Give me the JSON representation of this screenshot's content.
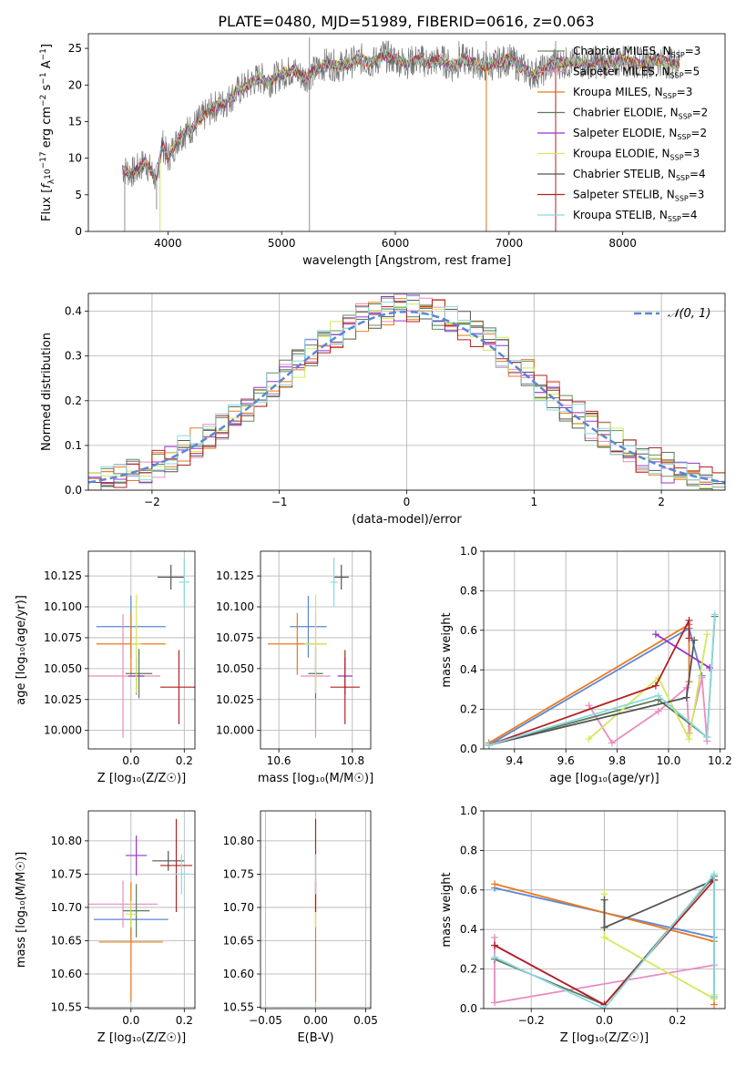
{
  "figure_title": "PLATE=0480, MJD=51989, FIBERID=0616, z=0.063",
  "colors": [
    "#6b8e5a",
    "#e88cc0",
    "#e87a1c",
    "#5a7a5a",
    "#9932cc",
    "#d4e85a",
    "#555555",
    "#b22222",
    "#8cd8e0"
  ],
  "model_colors": {
    "MILES_Chabrier": "#5b86d6",
    "MILES_Salpeter": "#e88cc0",
    "MILES_Kroupa": "#e87a1c",
    "ELODIE_Chabrier": "#5a7a5a",
    "ELODIE_Salpeter": "#9932cc",
    "ELODIE_Kroupa": "#d4e85a",
    "STELIB_Chabrier": "#555555",
    "STELIB_Salpeter": "#b22222",
    "STELIB_Kroupa": "#8cd8e0"
  },
  "chart_data": [
    {
      "id": "spectrum",
      "type": "line",
      "xlabel": "wavelength [Angstrom, rest frame]",
      "ylabel_parts": [
        "Flux [",
        "f",
        "λ",
        "10",
        "−17",
        " erg cm",
        "−2",
        " s",
        "−1",
        " A",
        "−1",
        "]"
      ],
      "xlim": [
        3300,
        8900
      ],
      "ylim": [
        0,
        27
      ],
      "xticks": [
        4000,
        5000,
        6000,
        7000,
        8000
      ],
      "yticks": [
        0,
        5,
        10,
        15,
        20,
        25
      ],
      "grid": false,
      "legend_position": "right",
      "series": [
        {
          "name": "Chabrier MILES, N",
          "sub": "SSP",
          "suffix": "=3",
          "color": "#6b8e5a"
        },
        {
          "name": "Salpeter MILES, N",
          "sub": "SSP",
          "suffix": "=5",
          "color": "#e88cc0"
        },
        {
          "name": "Kroupa MILES, N",
          "sub": "SSP",
          "suffix": "=3",
          "color": "#e87a1c"
        },
        {
          "name": "Chabrier ELODIE, N",
          "sub": "SSP",
          "suffix": "=2",
          "color": "#5a7a5a"
        },
        {
          "name": "Salpeter ELODIE, N",
          "sub": "SSP",
          "suffix": "=2",
          "color": "#9932cc"
        },
        {
          "name": "Kroupa ELODIE, N",
          "sub": "SSP",
          "suffix": "=3",
          "color": "#d4e85a"
        },
        {
          "name": "Chabrier STELIB, N",
          "sub": "SSP",
          "suffix": "=4",
          "color": "#555555"
        },
        {
          "name": "Salpeter STELIB, N",
          "sub": "SSP",
          "suffix": "=3",
          "color": "#b22222"
        },
        {
          "name": "Kroupa STELIB, N",
          "sub": "SSP",
          "suffix": "=4",
          "color": "#8cd8e0"
        }
      ],
      "continuum": [
        [
          3600,
          8.5
        ],
        [
          3700,
          8
        ],
        [
          3800,
          9.5
        ],
        [
          3900,
          7
        ],
        [
          3950,
          12
        ],
        [
          4000,
          10
        ],
        [
          4100,
          13
        ],
        [
          4200,
          14
        ],
        [
          4300,
          15.5
        ],
        [
          4400,
          17
        ],
        [
          4500,
          17.5
        ],
        [
          4600,
          19
        ],
        [
          4700,
          20
        ],
        [
          4800,
          21
        ],
        [
          4900,
          20.5
        ],
        [
          5000,
          21.5
        ],
        [
          5100,
          22
        ],
        [
          5200,
          21
        ],
        [
          5300,
          22
        ],
        [
          5400,
          23
        ],
        [
          5500,
          22.5
        ],
        [
          5600,
          23
        ],
        [
          5700,
          23.5
        ],
        [
          5800,
          23
        ],
        [
          5900,
          24
        ],
        [
          6000,
          23.5
        ],
        [
          6100,
          23
        ],
        [
          6200,
          23.5
        ],
        [
          6300,
          23
        ],
        [
          6400,
          23.5
        ],
        [
          6500,
          22.5
        ],
        [
          6600,
          23.5
        ],
        [
          6700,
          23
        ],
        [
          6800,
          22.5
        ],
        [
          6900,
          23
        ],
        [
          7000,
          23.5
        ],
        [
          7100,
          22.5
        ],
        [
          7200,
          21.5
        ],
        [
          7300,
          22
        ],
        [
          7400,
          23
        ],
        [
          7500,
          23
        ],
        [
          7600,
          23
        ],
        [
          7700,
          23
        ],
        [
          7800,
          23
        ],
        [
          7900,
          23
        ],
        [
          8000,
          23.5
        ],
        [
          8100,
          23
        ],
        [
          8200,
          23
        ],
        [
          8300,
          23.5
        ],
        [
          8400,
          23
        ],
        [
          8500,
          23
        ]
      ],
      "spikes": [
        [
          3620,
          0
        ],
        [
          3900,
          3
        ],
        [
          5245,
          0
        ],
        [
          5245,
          26.5
        ],
        [
          5890,
          26
        ],
        [
          6560,
          26
        ],
        [
          6800,
          0
        ],
        [
          6800,
          26
        ],
        [
          7410,
          0
        ],
        [
          7410,
          26
        ]
      ]
    },
    {
      "id": "residuals",
      "type": "histogram",
      "xlabel": "(data-model)/error",
      "ylabel": "Normed distribution",
      "xlim": [
        -2.5,
        2.5
      ],
      "ylim": [
        0,
        0.44
      ],
      "xticks": [
        -2,
        -1,
        0,
        1,
        2
      ],
      "yticks": [
        0.0,
        0.1,
        0.2,
        0.3,
        0.4
      ],
      "ytick_labels": [
        "0.0",
        "0.1",
        "0.2",
        "0.3",
        "0.4"
      ],
      "xtick_labels": [
        "−2",
        "−1",
        "0",
        "1",
        "2"
      ],
      "grid": true,
      "legend_position": "top-right",
      "legend_label": "𝒩(0, 1)",
      "gaussian_mean": 0,
      "gaussian_sigma": 1,
      "bin_width": 0.1
    },
    {
      "id": "age_vs_Z",
      "type": "scatter",
      "xlabel": "Z [log₁₀(Z/Z☉)]",
      "ylabel": "age  [log₁₀(age/yr)]",
      "xlim": [
        -0.16,
        0.24
      ],
      "ylim": [
        9.985,
        10.145
      ],
      "xticks": [
        0.0,
        0.2
      ],
      "xtick_labels": [
        "0.0",
        "0.2"
      ],
      "yticks": [
        10.0,
        10.025,
        10.05,
        10.075,
        10.1,
        10.125
      ],
      "ytick_labels": [
        "10.000",
        "10.025",
        "10.050",
        "10.075",
        "10.100",
        "10.125"
      ],
      "grid": true,
      "points": [
        {
          "x": 0.0,
          "y": 10.084,
          "xerr": 0.13,
          "yerr": 0.025,
          "color": "#5b86d6"
        },
        {
          "x": -0.03,
          "y": 10.044,
          "xerr": 0.14,
          "yerr": 0.05,
          "color": "#e88cc0"
        },
        {
          "x": 0.0,
          "y": 10.07,
          "xerr": 0.13,
          "yerr": 0.025,
          "color": "#e87a1c"
        },
        {
          "x": 0.03,
          "y": 10.046,
          "xerr": 0.05,
          "yerr": 0.02,
          "color": "#5a7a5a"
        },
        {
          "x": 0.02,
          "y": 10.044,
          "xerr": 0.03,
          "yerr": 0.015,
          "color": "#9932cc"
        },
        {
          "x": 0.02,
          "y": 10.07,
          "xerr": 0.02,
          "yerr": 0.04,
          "color": "#d4e85a"
        },
        {
          "x": 0.15,
          "y": 10.124,
          "xerr": 0.05,
          "yerr": 0.01,
          "color": "#555555"
        },
        {
          "x": 0.18,
          "y": 10.035,
          "xerr": 0.07,
          "yerr": 0.03,
          "color": "#b22222"
        },
        {
          "x": 0.2,
          "y": 10.12,
          "xerr": 0.02,
          "yerr": 0.02,
          "color": "#8cd8e0"
        }
      ]
    },
    {
      "id": "age_vs_mass",
      "type": "scatter",
      "xlabel": "mass [log₁₀(M/M☉)]",
      "ylabel": "",
      "xlim": [
        10.55,
        10.85
      ],
      "ylim": [
        9.985,
        10.145
      ],
      "xticks": [
        10.6,
        10.8
      ],
      "xtick_labels": [
        "10.6",
        "10.8"
      ],
      "yticks": [
        10.0,
        10.025,
        10.05,
        10.075,
        10.1,
        10.125
      ],
      "ytick_labels": [
        "10.000",
        "10.025",
        "10.050",
        "10.075",
        "10.100",
        "10.125"
      ],
      "grid": true,
      "points": [
        {
          "x": 10.68,
          "y": 10.084,
          "xerr": 0.05,
          "yerr": 0.025,
          "color": "#5b86d6"
        },
        {
          "x": 10.7,
          "y": 10.044,
          "xerr": 0.04,
          "yerr": 0.05,
          "color": "#e88cc0"
        },
        {
          "x": 10.65,
          "y": 10.07,
          "xerr": 0.08,
          "yerr": 0.025,
          "color": "#e87a1c"
        },
        {
          "x": 10.7,
          "y": 10.046,
          "xerr": 0.02,
          "yerr": 0.02,
          "color": "#5a7a5a"
        },
        {
          "x": 10.78,
          "y": 10.044,
          "xerr": 0.02,
          "yerr": 0.015,
          "color": "#9932cc"
        },
        {
          "x": 10.7,
          "y": 10.07,
          "xerr": 0.03,
          "yerr": 0.04,
          "color": "#d4e85a"
        },
        {
          "x": 10.77,
          "y": 10.124,
          "xerr": 0.02,
          "yerr": 0.01,
          "color": "#555555"
        },
        {
          "x": 10.78,
          "y": 10.035,
          "xerr": 0.04,
          "yerr": 0.03,
          "color": "#b22222"
        },
        {
          "x": 10.75,
          "y": 10.12,
          "xerr": 0.01,
          "yerr": 0.02,
          "color": "#8cd8e0"
        }
      ]
    },
    {
      "id": "weight_vs_age",
      "type": "line",
      "xlabel": "age  [log₁₀(age/yr)]",
      "ylabel": "mass weight",
      "xlim": [
        9.28,
        10.22
      ],
      "ylim": [
        0,
        1
      ],
      "xticks": [
        9.4,
        9.6,
        9.8,
        10.0,
        10.2
      ],
      "xtick_labels": [
        "9.4",
        "9.6",
        "9.8",
        "10.0",
        "10.2"
      ],
      "yticks": [
        0,
        0.2,
        0.4,
        0.6,
        0.8,
        1.0
      ],
      "ytick_labels": [
        "0.0",
        "0.2",
        "0.4",
        "0.6",
        "0.8",
        "1.0"
      ],
      "grid": true,
      "series": [
        {
          "color": "#5b86d6",
          "x": [
            9.3,
            10.08,
            10.13
          ],
          "y": [
            0.02,
            0.61,
            0.37
          ]
        },
        {
          "color": "#e87a1c",
          "x": [
            9.3,
            10.08,
            10.08
          ],
          "y": [
            0.03,
            0.63,
            0.34
          ]
        },
        {
          "color": "#e88cc0",
          "x": [
            9.69,
            9.78,
            9.96,
            10.07,
            10.08,
            10.13,
            10.15
          ],
          "y": [
            0.22,
            0.03,
            0.19,
            0.31,
            0.08,
            0.36,
            0.04
          ]
        },
        {
          "color": "#5a7a5a",
          "x": [
            9.3,
            9.96,
            10.15,
            10.18
          ],
          "y": [
            0.02,
            0.25,
            0.06,
            0.67
          ]
        },
        {
          "color": "#9932cc",
          "x": [
            9.95,
            10.16
          ],
          "y": [
            0.58,
            0.41
          ]
        },
        {
          "color": "#d4e85a",
          "x": [
            9.69,
            9.96,
            10.08,
            10.15
          ],
          "y": [
            0.05,
            0.36,
            0.05,
            0.58
          ]
        },
        {
          "color": "#555555",
          "x": [
            9.3,
            10.07,
            10.1
          ],
          "y": [
            0.02,
            0.26,
            0.55
          ]
        },
        {
          "color": "#b22222",
          "x": [
            9.3,
            9.95,
            10.08,
            10.08
          ],
          "y": [
            0.02,
            0.32,
            0.65,
            0.56
          ]
        },
        {
          "color": "#8cd8e0",
          "x": [
            9.3,
            9.96,
            10.15,
            10.18
          ],
          "y": [
            0.02,
            0.27,
            0.06,
            0.68
          ]
        }
      ]
    },
    {
      "id": "mass_vs_Z",
      "type": "scatter",
      "xlabel": "Z [log₁₀(Z/Z☉)]",
      "ylabel": "mass [log₁₀(M/M☉)]",
      "xlim": [
        -0.16,
        0.24
      ],
      "ylim": [
        10.548,
        10.845
      ],
      "xticks": [
        0.0,
        0.2
      ],
      "xtick_labels": [
        "0.0",
        "0.2"
      ],
      "yticks": [
        10.55,
        10.6,
        10.65,
        10.7,
        10.75,
        10.8
      ],
      "ytick_labels": [
        "10.55",
        "10.60",
        "10.65",
        "10.70",
        "10.75",
        "10.80"
      ],
      "grid": true,
      "points": [
        {
          "x": 0.0,
          "y": 10.682,
          "xerr": 0.14,
          "yerr": 0.03,
          "color": "#5b86d6"
        },
        {
          "x": -0.03,
          "y": 10.705,
          "xerr": 0.13,
          "yerr": 0.035,
          "color": "#e88cc0"
        },
        {
          "x": 0.0,
          "y": 10.648,
          "xerr": 0.12,
          "yerr": 0.09,
          "color": "#e87a1c"
        },
        {
          "x": 0.02,
          "y": 10.695,
          "xerr": 0.05,
          "yerr": 0.04,
          "color": "#5a7a5a"
        },
        {
          "x": 0.02,
          "y": 10.778,
          "xerr": 0.04,
          "yerr": 0.03,
          "color": "#9932cc"
        },
        {
          "x": 0.0,
          "y": 10.69,
          "xerr": 0.02,
          "yerr": 0.02,
          "color": "#d4e85a"
        },
        {
          "x": 0.14,
          "y": 10.77,
          "xerr": 0.06,
          "yerr": 0.015,
          "color": "#555555"
        },
        {
          "x": 0.17,
          "y": 10.763,
          "xerr": 0.06,
          "yerr": 0.07,
          "color": "#b22222"
        },
        {
          "x": 0.19,
          "y": 10.75,
          "xerr": 0.03,
          "yerr": 0.03,
          "color": "#8cd8e0"
        }
      ]
    },
    {
      "id": "mass_vs_ebv",
      "type": "scatter",
      "xlabel": "E(B-V)",
      "ylabel": "",
      "xlim": [
        -0.055,
        0.055
      ],
      "ylim": [
        10.548,
        10.845
      ],
      "xticks": [
        -0.05,
        0.0,
        0.05
      ],
      "xtick_labels": [
        "−0.05",
        "0.00",
        "0.05"
      ],
      "yticks": [
        10.55,
        10.6,
        10.65,
        10.7,
        10.75,
        10.8
      ],
      "ytick_labels": [
        "10.55",
        "10.60",
        "10.65",
        "10.70",
        "10.75",
        "10.80"
      ],
      "grid": true,
      "points": [
        {
          "x": 0.0,
          "y": 10.648,
          "xerr": 0.0,
          "yerr": 0.09,
          "color": "#e87a1c"
        },
        {
          "x": 0.0,
          "y": 10.705,
          "xerr": 0.0,
          "yerr": 0.035,
          "color": "#e88cc0"
        },
        {
          "x": 0.0,
          "y": 10.69,
          "xerr": 0.0,
          "yerr": 0.02,
          "color": "#d4e85a"
        },
        {
          "x": 0.0,
          "y": 10.763,
          "xerr": 0.0,
          "yerr": 0.07,
          "color": "#b22222"
        },
        {
          "x": 0.0,
          "y": 10.75,
          "xerr": 0.0,
          "yerr": 0.03,
          "color": "#8cd8e0"
        }
      ]
    },
    {
      "id": "weight_vs_Z",
      "type": "line",
      "xlabel": "Z [log₁₀(Z/Z☉)]",
      "ylabel": "mass weight",
      "xlim": [
        -0.33,
        0.33
      ],
      "ylim": [
        0,
        1
      ],
      "xticks": [
        -0.2,
        0.0,
        0.2
      ],
      "xtick_labels": [
        "−0.2",
        "0.0",
        "0.2"
      ],
      "yticks": [
        0,
        0.2,
        0.4,
        0.6,
        0.8,
        1.0
      ],
      "ytick_labels": [
        "0.0",
        "0.2",
        "0.4",
        "0.6",
        "0.8",
        "1.0"
      ],
      "grid": true,
      "series": [
        {
          "color": "#5b86d6",
          "x": [
            -0.3,
            0.3
          ],
          "y": [
            0.61,
            0.36
          ]
        },
        {
          "color": "#e87a1c",
          "x": [
            -0.3,
            0.3,
            0.3
          ],
          "y": [
            0.63,
            0.34,
            0.02
          ]
        },
        {
          "color": "#e88cc0",
          "x": [
            -0.3,
            -0.3,
            0.3,
            0.3
          ],
          "y": [
            0.36,
            0.03,
            0.22,
            0.05
          ]
        },
        {
          "color": "#5a7a5a",
          "x": [
            -0.3,
            0.0,
            0.3,
            0.3
          ],
          "y": [
            0.25,
            0.02,
            0.67,
            0.06
          ]
        },
        {
          "color": "#9932cc",
          "x": [
            -0.3,
            0.0
          ],
          "y": [
            0.32,
            0.02
          ]
        },
        {
          "color": "#d4e85a",
          "x": [
            0.0,
            0.0,
            0.3,
            0.3
          ],
          "y": [
            0.58,
            0.36,
            0.05,
            0.07
          ]
        },
        {
          "color": "#555555",
          "x": [
            0.0,
            0.0,
            0.3
          ],
          "y": [
            0.55,
            0.41,
            0.65
          ]
        },
        {
          "color": "#b22222",
          "x": [
            -0.3,
            0.0,
            0.3
          ],
          "y": [
            0.32,
            0.02,
            0.65
          ]
        },
        {
          "color": "#8cd8e0",
          "x": [
            -0.3,
            0.0,
            0.3,
            0.3
          ],
          "y": [
            0.26,
            0.0,
            0.68,
            0.06
          ]
        }
      ]
    }
  ]
}
